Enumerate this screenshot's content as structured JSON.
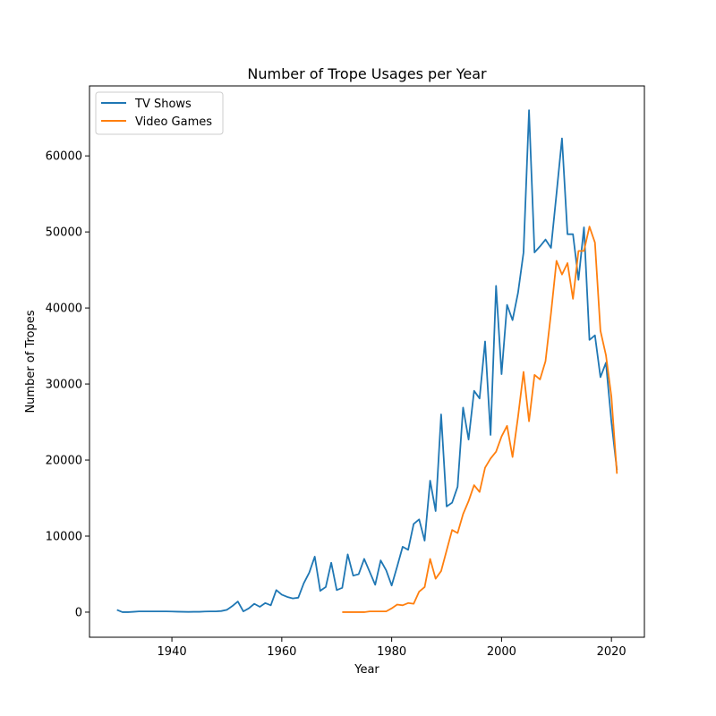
{
  "chart_data": {
    "type": "line",
    "title": "Number of Trope Usages per Year",
    "xlabel": "Year",
    "ylabel": "Number of Tropes",
    "xlim": [
      1925,
      2026
    ],
    "ylim": [
      -3300,
      69200
    ],
    "xticks": [
      1940,
      1960,
      1980,
      2000,
      2020
    ],
    "yticks": [
      0,
      10000,
      20000,
      30000,
      40000,
      50000,
      60000
    ],
    "grid": false,
    "legend": "top-left",
    "series": [
      {
        "name": "TV Shows",
        "color": "#1f77b4",
        "x": [
          1930,
          1931,
          1932,
          1933,
          1934,
          1935,
          1936,
          1937,
          1938,
          1939,
          1940,
          1941,
          1942,
          1943,
          1944,
          1945,
          1946,
          1947,
          1948,
          1949,
          1950,
          1951,
          1952,
          1953,
          1954,
          1955,
          1956,
          1957,
          1958,
          1959,
          1960,
          1961,
          1962,
          1963,
          1964,
          1965,
          1966,
          1967,
          1968,
          1969,
          1970,
          1971,
          1972,
          1973,
          1974,
          1975,
          1976,
          1977,
          1978,
          1979,
          1980,
          1981,
          1982,
          1983,
          1984,
          1985,
          1986,
          1987,
          1988,
          1989,
          1990,
          1991,
          1992,
          1993,
          1994,
          1995,
          1996,
          1997,
          1998,
          1999,
          2000,
          2001,
          2002,
          2003,
          2004,
          2005,
          2006,
          2007,
          2008,
          2009,
          2010,
          2011,
          2012,
          2013,
          2014,
          2015,
          2016,
          2017,
          2018,
          2019,
          2020,
          2021
        ],
        "values": [
          300,
          0,
          0,
          50,
          100,
          100,
          100,
          100,
          100,
          100,
          80,
          60,
          50,
          30,
          50,
          50,
          80,
          100,
          100,
          150,
          300,
          800,
          1400,
          100,
          500,
          1100,
          700,
          1200,
          900,
          2900,
          2300,
          2000,
          1800,
          1900,
          3800,
          5200,
          7300,
          2800,
          3300,
          6500,
          2900,
          3200,
          7600,
          4800,
          5000,
          7000,
          5300,
          3600,
          6800,
          5500,
          3500,
          6000,
          8600,
          8200,
          11600,
          12200,
          9400,
          17300,
          13300,
          26000,
          13900,
          14400,
          16500,
          26900,
          22700,
          29100,
          28100,
          35600,
          23300,
          42900,
          31300,
          40400,
          38400,
          42000,
          47300,
          66000,
          47300,
          48100,
          49000,
          47900,
          55000,
          62300,
          49700,
          49700,
          43700,
          50600,
          35800,
          36400,
          30900,
          32800,
          25000,
          18700
        ]
      },
      {
        "name": "Video Games",
        "color": "#ff7f0e",
        "x": [
          1971,
          1972,
          1973,
          1974,
          1975,
          1976,
          1977,
          1978,
          1979,
          1980,
          1981,
          1982,
          1983,
          1984,
          1985,
          1986,
          1987,
          1988,
          1989,
          1990,
          1991,
          1992,
          1993,
          1994,
          1995,
          1996,
          1997,
          1998,
          1999,
          2000,
          2001,
          2002,
          2003,
          2004,
          2005,
          2006,
          2007,
          2008,
          2009,
          2010,
          2011,
          2012,
          2013,
          2014,
          2015,
          2016,
          2017,
          2018,
          2019,
          2020,
          2021
        ],
        "values": [
          0,
          0,
          0,
          0,
          0,
          100,
          100,
          100,
          100,
          500,
          1000,
          900,
          1200,
          1100,
          2700,
          3300,
          7000,
          4400,
          5400,
          8100,
          10800,
          10400,
          12900,
          14600,
          16700,
          15800,
          19000,
          20200,
          21100,
          23100,
          24500,
          20400,
          25700,
          31600,
          25100,
          31200,
          30600,
          33000,
          39300,
          46200,
          44400,
          45900,
          41200,
          47500,
          47500,
          50700,
          48600,
          37000,
          33800,
          28300,
          18200
        ]
      }
    ]
  }
}
